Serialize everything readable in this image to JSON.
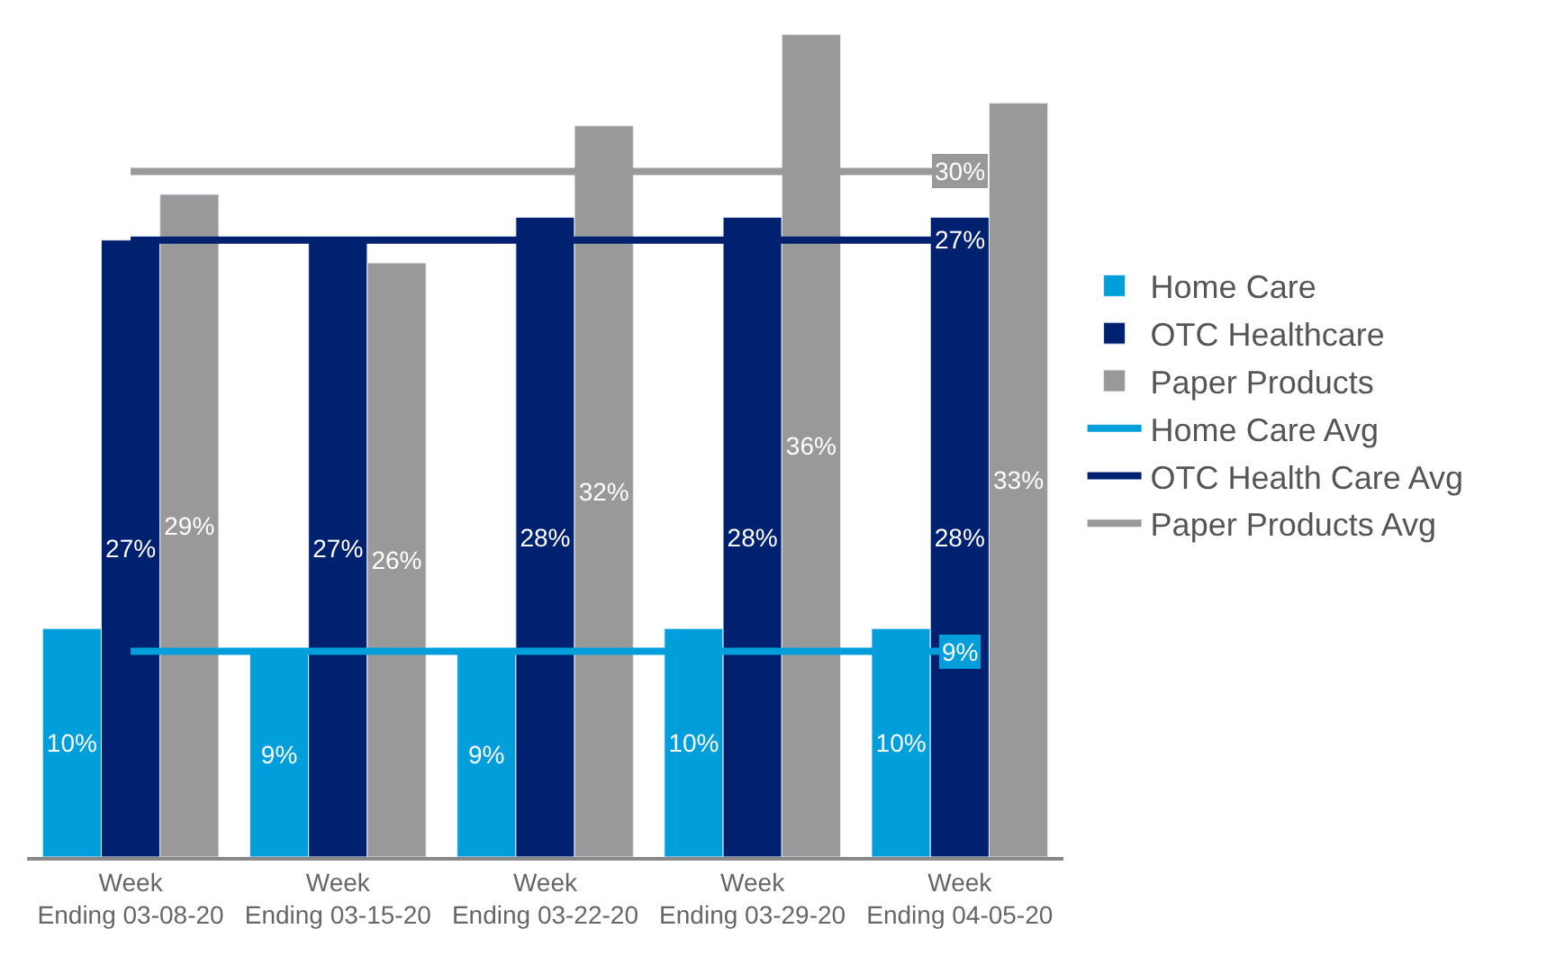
{
  "chart_data": {
    "type": "bar",
    "categories": [
      "Week Ending 03-08-20",
      "Week Ending 03-15-20",
      "Week Ending 03-22-20",
      "Week Ending 03-29-20",
      "Week Ending 04-05-20"
    ],
    "series": [
      {
        "name": "Home Care",
        "color": "#009fdb",
        "values": [
          10,
          9,
          9,
          10,
          10
        ],
        "value_labels": [
          "10%",
          "9%",
          "9%",
          "10%",
          "10%"
        ]
      },
      {
        "name": "OTC Healthcare",
        "color": "#002070",
        "values": [
          27,
          27,
          28,
          28,
          28
        ],
        "value_labels": [
          "27%",
          "27%",
          "28%",
          "28%",
          "28%"
        ]
      },
      {
        "name": "Paper Products",
        "color": "#999999",
        "values": [
          29,
          26,
          32,
          36,
          33
        ],
        "value_labels": [
          "29%",
          "26%",
          "32%",
          "36%",
          "33%"
        ]
      },
      {
        "name": "Home Care Avg",
        "type": "line",
        "color": "#009fdb",
        "values": [
          9,
          9,
          9,
          9,
          9
        ],
        "value_labels": [
          null,
          null,
          null,
          null,
          "9%"
        ]
      },
      {
        "name": "OTC Health Care Avg",
        "type": "line",
        "color": "#002070",
        "values": [
          27,
          27,
          27,
          27,
          27
        ],
        "value_labels": [
          null,
          null,
          null,
          null,
          "27%"
        ]
      },
      {
        "name": "Paper Products Avg",
        "type": "line",
        "color": "#999999",
        "values": [
          30,
          30,
          30,
          30,
          30
        ],
        "value_labels": [
          null,
          null,
          null,
          null,
          "30%"
        ]
      }
    ],
    "legend": "right",
    "marker": "none",
    "line_style": "solid"
  }
}
